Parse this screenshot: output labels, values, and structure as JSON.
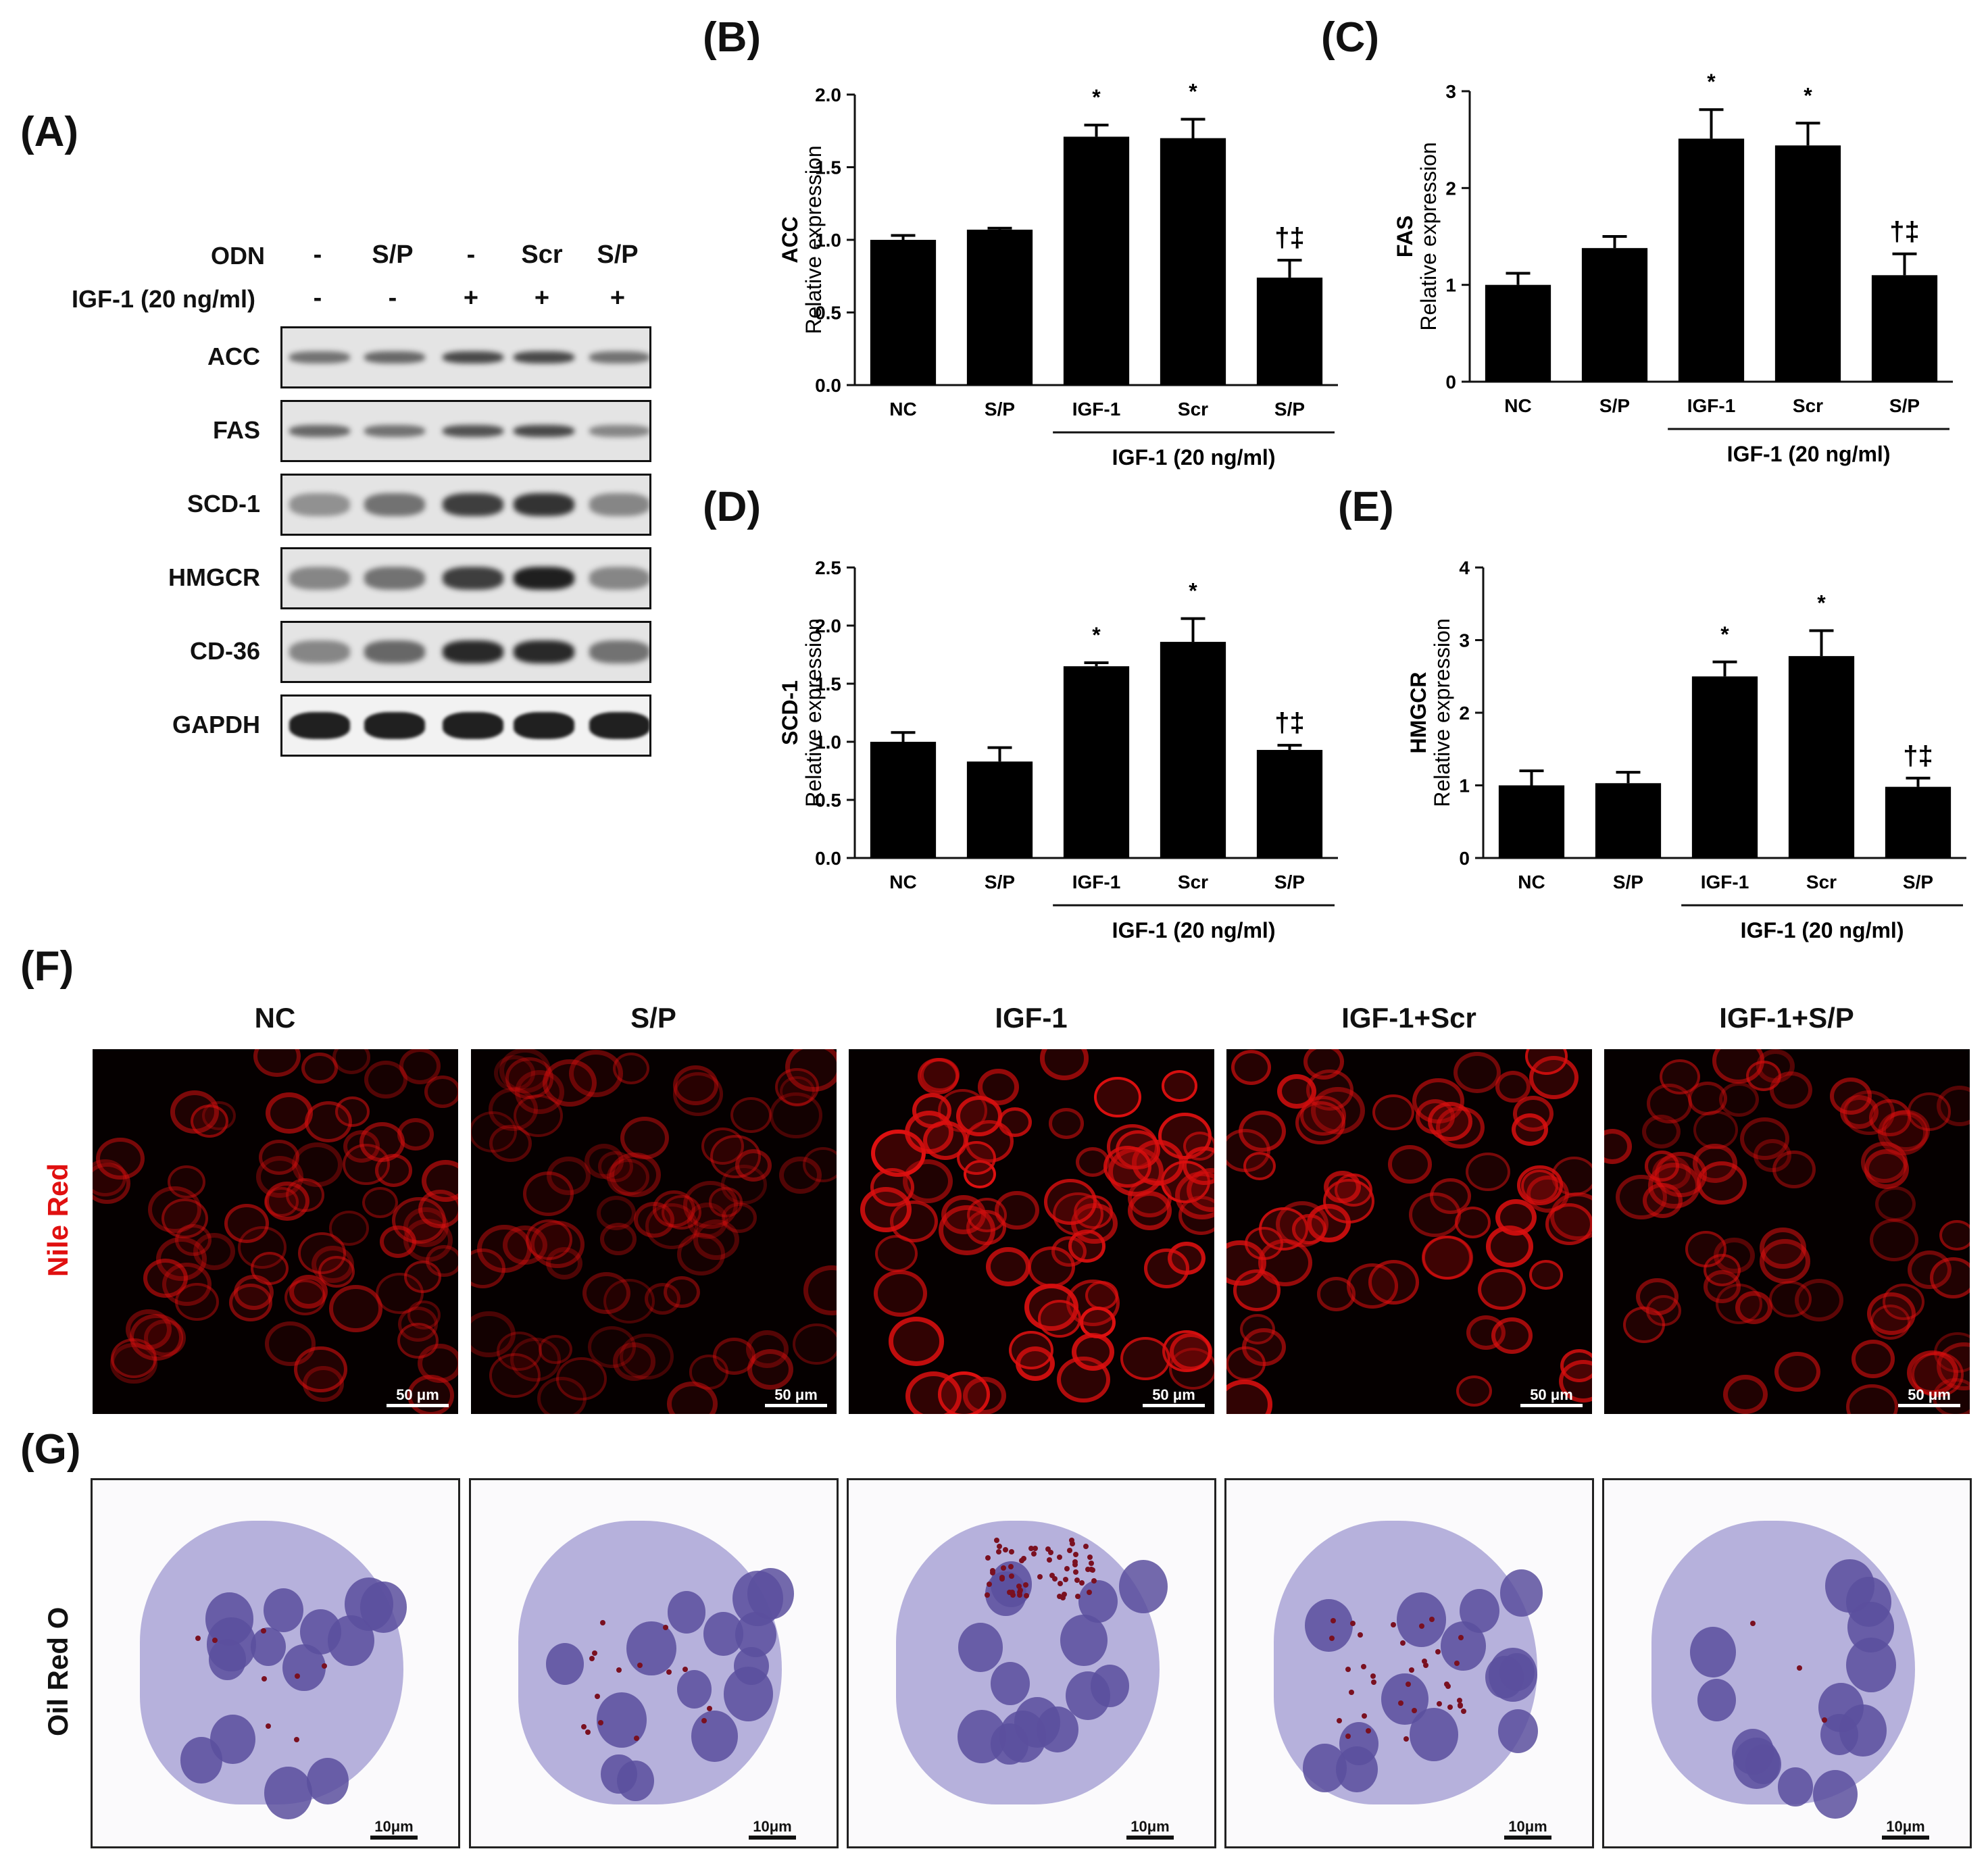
{
  "panels": {
    "A": "(A)",
    "B": "(B)",
    "C": "(C)",
    "D": "(D)",
    "E": "(E)",
    "F": "(F)",
    "G": "(G)"
  },
  "western_blot": {
    "odn_label": "ODN",
    "igf_label": "IGF-1 (20 ng/ml)",
    "odn_values": [
      "-",
      "S/P",
      "-",
      "Scr",
      "S/P"
    ],
    "igf_values": [
      "-",
      "-",
      "+",
      "+",
      "+"
    ],
    "proteins": [
      "ACC",
      "FAS",
      "SCD-1",
      "HMGCR",
      "CD-36",
      "GAPDH"
    ]
  },
  "chart_data": [
    {
      "type": "bar",
      "panel": "B",
      "categories": [
        "NC",
        "S/P",
        "IGF-1",
        "Scr",
        "S/P"
      ],
      "values": [
        1.0,
        1.07,
        1.71,
        1.7,
        0.74
      ],
      "errors": [
        0.03,
        0.01,
        0.08,
        0.13,
        0.12
      ],
      "annotations": [
        "",
        "",
        "*",
        "*",
        "†‡"
      ],
      "ylabel_gene": "ACC",
      "ylabel": "Relative expression",
      "ylim": [
        0,
        2.0
      ],
      "yticks": [
        "0.0",
        "0.5",
        "1.0",
        "1.5",
        "2.0"
      ],
      "group_label": "IGF-1 (20 ng/ml)"
    },
    {
      "type": "bar",
      "panel": "C",
      "categories": [
        "NC",
        "S/P",
        "IGF-1",
        "Scr",
        "S/P"
      ],
      "values": [
        1.0,
        1.38,
        2.51,
        2.44,
        1.1
      ],
      "errors": [
        0.12,
        0.12,
        0.3,
        0.23,
        0.22
      ],
      "annotations": [
        "",
        "",
        "*",
        "*",
        "†‡"
      ],
      "ylabel_gene": "FAS",
      "ylabel": "Relative expression",
      "ylim": [
        0,
        3
      ],
      "yticks": [
        "0",
        "1",
        "2",
        "3"
      ],
      "group_label": "IGF-1 (20 ng/ml)"
    },
    {
      "type": "bar",
      "panel": "D",
      "categories": [
        "NC",
        "S/P",
        "IGF-1",
        "Scr",
        "S/P"
      ],
      "values": [
        1.0,
        0.83,
        1.65,
        1.86,
        0.93
      ],
      "errors": [
        0.08,
        0.12,
        0.03,
        0.2,
        0.04
      ],
      "annotations": [
        "",
        "",
        "*",
        "*",
        "†‡"
      ],
      "ylabel_gene": "SCD-1",
      "ylabel": "Relative expression",
      "ylim": [
        0,
        2.5
      ],
      "yticks": [
        "0.0",
        "0.5",
        "1.0",
        "1.5",
        "2.0",
        "2.5"
      ],
      "group_label": "IGF-1 (20 ng/ml)"
    },
    {
      "type": "bar",
      "panel": "E",
      "categories": [
        "NC",
        "S/P",
        "IGF-1",
        "Scr",
        "S/P"
      ],
      "values": [
        1.0,
        1.03,
        2.5,
        2.78,
        0.98
      ],
      "errors": [
        0.2,
        0.15,
        0.2,
        0.35,
        0.12
      ],
      "annotations": [
        "",
        "",
        "*",
        "*",
        "†‡"
      ],
      "ylabel_gene": "HMGCR",
      "ylabel": "Relative expression",
      "ylim": [
        0,
        4
      ],
      "yticks": [
        "0",
        "1",
        "2",
        "3",
        "4"
      ],
      "group_label": "IGF-1 (20 ng/ml)"
    }
  ],
  "microscopy": {
    "titles": [
      "NC",
      "S/P",
      "IGF-1",
      "IGF-1+Scr",
      "IGF-1+S/P"
    ],
    "nile_label": "Nile Red",
    "oro_label": "Oil Red O",
    "nile_scale": "50 μm",
    "oro_scale": "10μm",
    "colors": {
      "nile": "#e01010",
      "oro_cyto": "#a9a3d6",
      "oro_nucleus": "#5b4f9e",
      "lipid": "#7a1020"
    }
  }
}
